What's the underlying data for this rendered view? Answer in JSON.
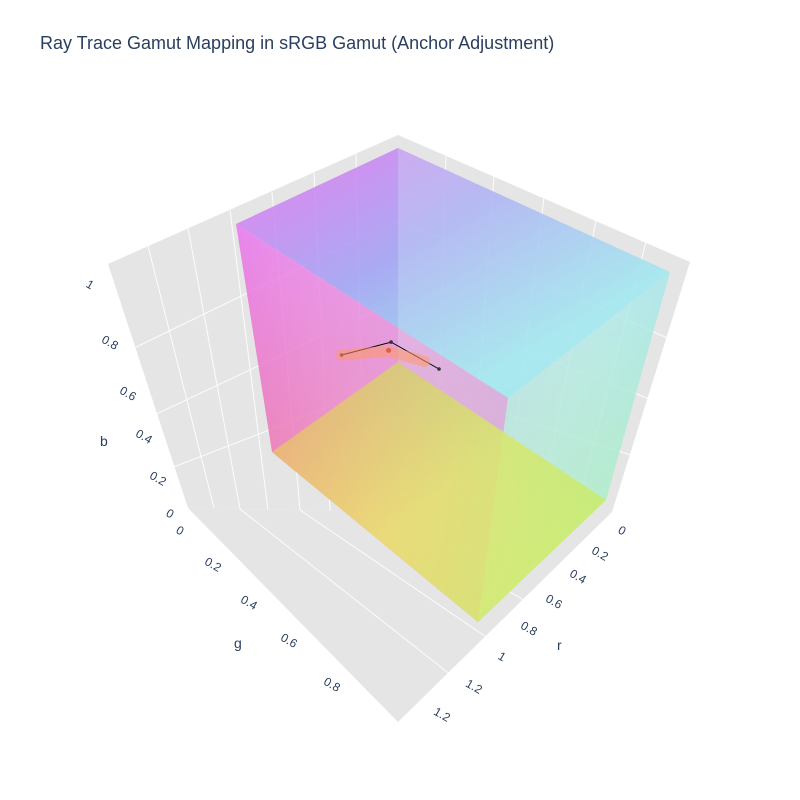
{
  "chart_data": {
    "type": "scatter3d",
    "title": "Ray Trace Gamut Mapping in sRGB Gamut (Anchor Adjustment)",
    "axes": {
      "r": {
        "label": "r",
        "ticks": [
          "0",
          "0.2",
          "0.4",
          "0.6",
          "0.8",
          "1",
          "1.2",
          "1.2"
        ]
      },
      "g": {
        "label": "g",
        "ticks": [
          "0",
          "0.2",
          "0.4",
          "0.6",
          "0.8"
        ]
      },
      "b": {
        "label": "b",
        "ticks": [
          "0",
          "0.2",
          "0.4",
          "0.6",
          "0.8",
          "1"
        ]
      }
    },
    "gamut": {
      "shape": "rgb-cube",
      "corners": {
        "black": "#333333",
        "red": "#ff3366",
        "green": "#66ff66",
        "blue": "#6680ff",
        "yellow": "#f5f060",
        "magenta": "#e870f0",
        "cyan": "#80f0f0",
        "white": "#f0f0f0"
      }
    },
    "series": [
      {
        "kind": "ray",
        "color": "#000000",
        "points": [
          {
            "r": -0.15,
            "g": 0.2,
            "b": 0.02
          },
          {
            "r": 0.1,
            "g": 0.22,
            "b": 0.25
          },
          {
            "r": 0.5,
            "g": 0.5,
            "b": 0.5
          }
        ]
      },
      {
        "kind": "trace",
        "color": "#ff9966",
        "points": [
          {
            "r": -0.15,
            "g": 0.2,
            "b": 0.02
          },
          {
            "r": 0.1,
            "g": 0.25,
            "b": 0.22
          },
          {
            "r": 0.4,
            "g": 0.45,
            "b": 0.45
          }
        ]
      },
      {
        "kind": "marker",
        "color": "#d9604d",
        "points": [
          {
            "r": 0.1,
            "g": 0.24,
            "b": 0.22
          }
        ]
      }
    ],
    "grid": true,
    "background": "#e5e5e5"
  }
}
